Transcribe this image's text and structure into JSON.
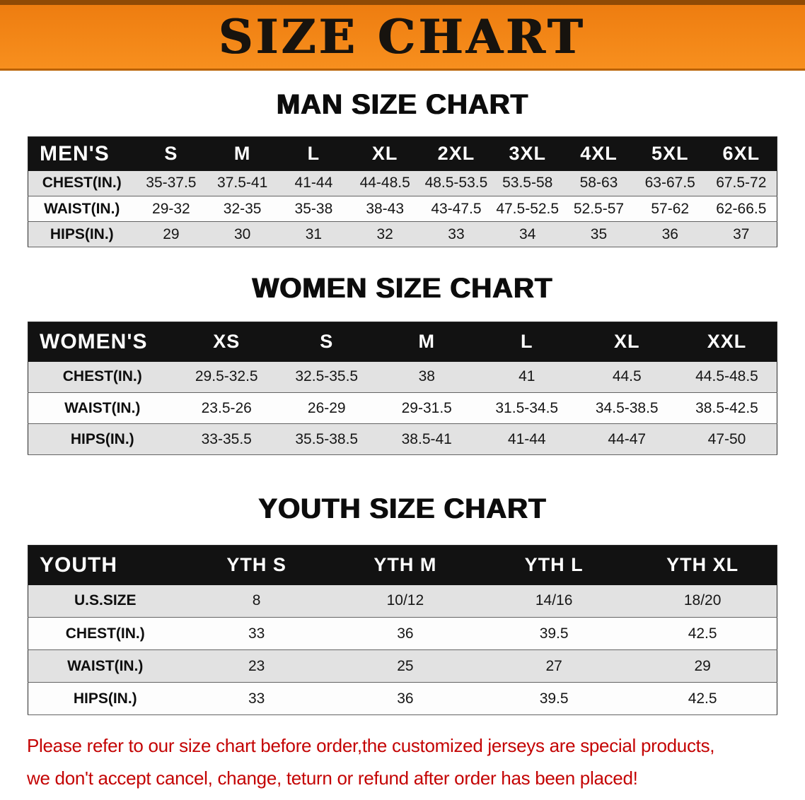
{
  "banner": {
    "title": "SIZE CHART",
    "bg_color": "#f5831d",
    "text_color": "#17130e"
  },
  "sections": {
    "men": {
      "heading": "MAN SIZE CHART",
      "table": {
        "header": [
          "MEN'S",
          "S",
          "M",
          "L",
          "XL",
          "2XL",
          "3XL",
          "4XL",
          "5XL",
          "6XL"
        ],
        "rows": [
          {
            "label": "CHEST(IN.)",
            "values": [
              "35-37.5",
              "37.5-41",
              "41-44",
              "44-48.5",
              "48.5-53.5",
              "53.5-58",
              "58-63",
              "63-67.5",
              "67.5-72"
            ]
          },
          {
            "label": "WAIST(IN.)",
            "values": [
              "29-32",
              "32-35",
              "35-38",
              "38-43",
              "43-47.5",
              "47.5-52.5",
              "52.5-57",
              "57-62",
              "62-66.5"
            ]
          },
          {
            "label": "HIPS(IN.)",
            "values": [
              "29",
              "30",
              "31",
              "32",
              "33",
              "34",
              "35",
              "36",
              "37"
            ]
          }
        ]
      }
    },
    "women": {
      "heading": "WOMEN SIZE CHART",
      "table": {
        "header": [
          "WOMEN'S",
          "XS",
          "S",
          "M",
          "L",
          "XL",
          "XXL"
        ],
        "rows": [
          {
            "label": "CHEST(IN.)",
            "values": [
              "29.5-32.5",
              "32.5-35.5",
              "38",
              "41",
              "44.5",
              "44.5-48.5"
            ]
          },
          {
            "label": "WAIST(IN.)",
            "values": [
              "23.5-26",
              "26-29",
              "29-31.5",
              "31.5-34.5",
              "34.5-38.5",
              "38.5-42.5"
            ]
          },
          {
            "label": "HIPS(IN.)",
            "values": [
              "33-35.5",
              "35.5-38.5",
              "38.5-41",
              "41-44",
              "44-47",
              "47-50"
            ]
          }
        ]
      }
    },
    "youth": {
      "heading": "YOUTH SIZE CHART",
      "table": {
        "header": [
          "YOUTH",
          "YTH S",
          "YTH M",
          "YTH L",
          "YTH XL"
        ],
        "rows": [
          {
            "label": "U.S.SIZE",
            "values": [
              "8",
              "10/12",
              "14/16",
              "18/20"
            ]
          },
          {
            "label": "CHEST(IN.)",
            "values": [
              "33",
              "36",
              "39.5",
              "42.5"
            ]
          },
          {
            "label": "WAIST(IN.)",
            "values": [
              "23",
              "25",
              "27",
              "29"
            ]
          },
          {
            "label": "HIPS(IN.)",
            "values": [
              "33",
              "36",
              "39.5",
              "42.5"
            ]
          }
        ]
      }
    }
  },
  "footer": {
    "line1": "Please refer to our size chart before order,the customized jerseys are special products,",
    "line2": "we don't accept cancel, change, teturn or refund after order has been placed!",
    "text_color": "#c40404"
  }
}
